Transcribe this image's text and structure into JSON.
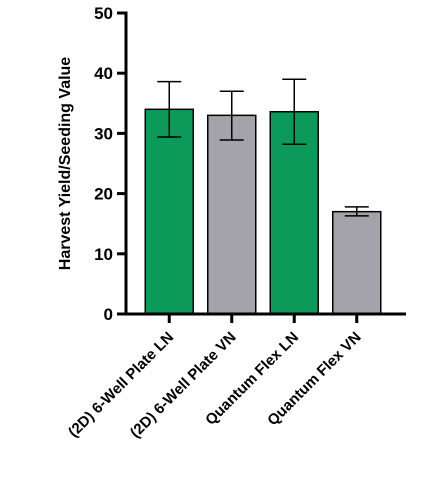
{
  "chart_data": {
    "type": "bar",
    "title": "",
    "xlabel": "",
    "ylabel": "Harvest Yield/Seeding Value",
    "ylim": [
      0,
      50
    ],
    "yticks": [
      0,
      10,
      20,
      30,
      40,
      50
    ],
    "grid": false,
    "categories": [
      "(2D) 6-Well Plate LN",
      "(2D) 6-Well Plate VN",
      "Quantum Flex LN",
      "Quantum Flex VN"
    ],
    "values": [
      34.0,
      33.0,
      33.6,
      17.0
    ],
    "error_low": [
      29.4,
      28.9,
      28.2,
      16.3
    ],
    "error_high": [
      38.6,
      37.0,
      39.0,
      17.8
    ],
    "colors": [
      "#0b9a5a",
      "#a3a3a9",
      "#0b9a5a",
      "#a3a3a9"
    ]
  }
}
